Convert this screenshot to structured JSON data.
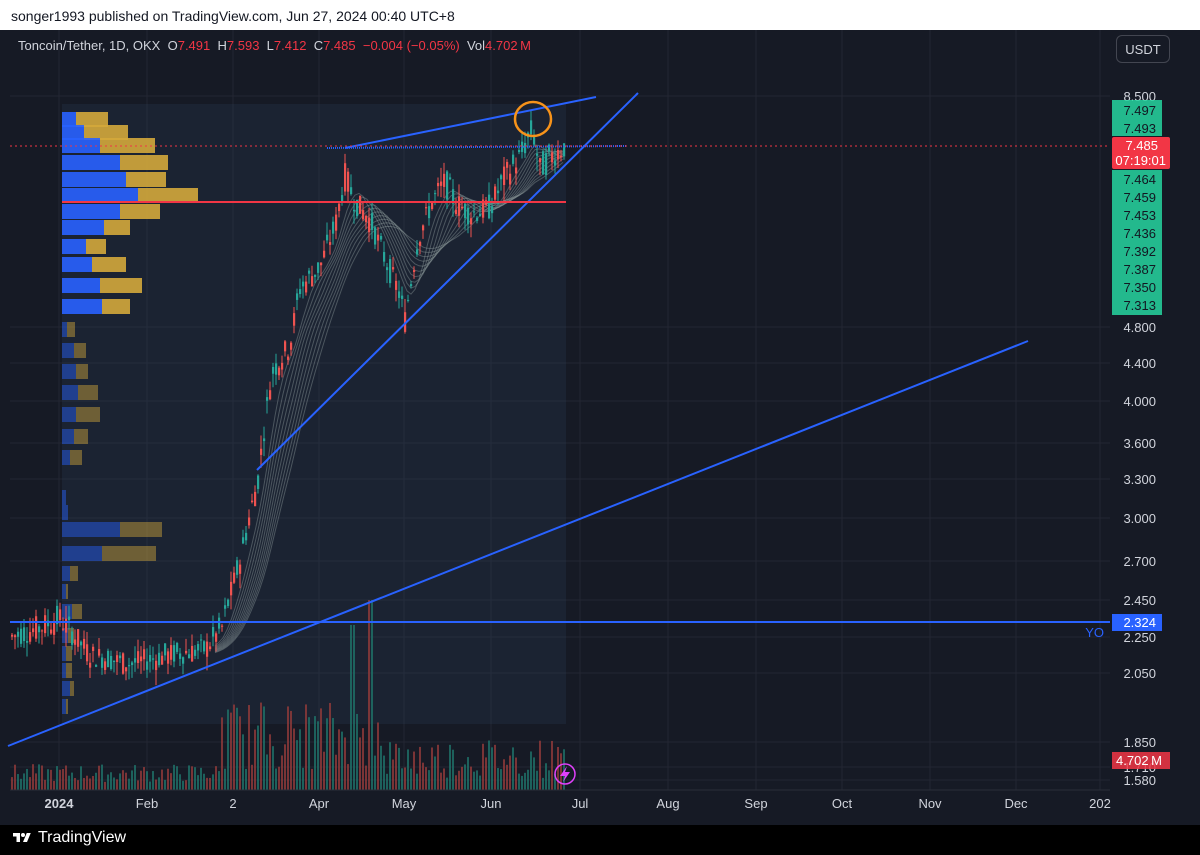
{
  "header": {
    "publisher": "songer1993 published on TradingView.com, Jun 27, 2024 00:40 UTC+8"
  },
  "legend": {
    "symbol": "Toncoin/Tether, 1D, OKX",
    "open_label": "O",
    "open": "7.491",
    "high_label": "H",
    "high": "7.593",
    "low_label": "L",
    "low": "7.412",
    "close_label": "C",
    "close": "7.485",
    "change": "−0.004 (−0.05%)",
    "vol_label": "Vol",
    "vol": "4.702 M"
  },
  "currency_button": "USDT",
  "brand": "TradingView",
  "colors": {
    "bg": "#161a25",
    "up": "#26a69a",
    "down": "#ef5350",
    "trendline": "#2962ff",
    "hline": "#f23645",
    "vp_up": "#2962ff",
    "vp_down": "#d4a93b",
    "accent": "#f7931a"
  },
  "icons": {
    "brand": "tradingview-logo-icon",
    "flash": "lightning-icon"
  },
  "chart_data": {
    "type": "candlestick",
    "title": "Toncoin/Tether, 1D, OKX",
    "y_scale": "log",
    "x_axis": {
      "ticks": [
        "2024",
        "Feb",
        "2",
        "Apr",
        "May",
        "Jun",
        "Jul",
        "Aug",
        "Sep",
        "Oct",
        "Nov",
        "Dec",
        "202"
      ]
    },
    "y_axis": {
      "ticks": [
        "8.500",
        "4.800",
        "4.400",
        "4.000",
        "3.600",
        "3.300",
        "3.000",
        "2.700",
        "2.450",
        "2.250",
        "2.050",
        "1.850",
        "1.710",
        "1.580"
      ]
    },
    "price_labels": [
      "7.497",
      "7.493",
      "7.464",
      "7.459",
      "7.453",
      "7.436",
      "7.392",
      "7.387",
      "7.350",
      "7.313"
    ],
    "last_price": {
      "value": "7.485",
      "countdown": "07:19:01"
    },
    "horizontal_line": {
      "value": "2.324",
      "label": "YO"
    },
    "volume_label": "4.702 M",
    "annotations": [
      {
        "type": "rising-wedge-upper-trendline"
      },
      {
        "type": "rising-wedge-lower-trendline"
      },
      {
        "type": "long-term-ascending-support-trendline"
      },
      {
        "type": "resistance-line"
      },
      {
        "type": "support-line",
        "color": "red"
      },
      {
        "type": "highlight-circle",
        "color": "orange",
        "at": "Jun top"
      }
    ],
    "ohlc_approx": [
      {
        "month": "Jan",
        "close": 2.2
      },
      {
        "month": "Feb",
        "close": 2.1
      },
      {
        "month": "Mar",
        "close": 4.0
      },
      {
        "month": "Apr",
        "close": 6.8
      },
      {
        "month": "May",
        "close": 6.2
      },
      {
        "month": "Jun",
        "close": 7.485
      }
    ]
  }
}
